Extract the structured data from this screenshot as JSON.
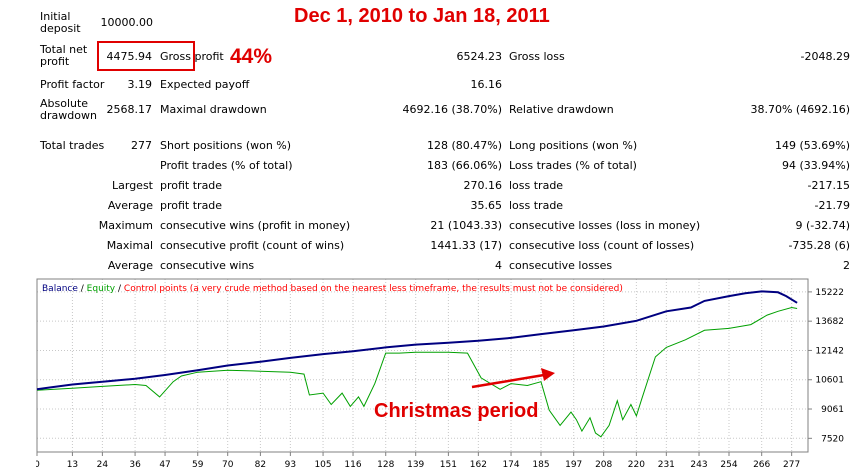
{
  "headline": "Dec 1, 2010 to Jan 18, 2011",
  "percent_note": "44%",
  "report": {
    "initial_deposit": {
      "label": "Initial deposit",
      "value": "10000.00"
    },
    "total_net_profit": {
      "label": "Total net profit",
      "value": "4475.94"
    },
    "gross_profit": {
      "label": "Gross profit",
      "value": "6524.23"
    },
    "gross_loss": {
      "label": "Gross loss",
      "value": "-2048.29"
    },
    "profit_factor": {
      "label": "Profit factor",
      "value": "3.19"
    },
    "expected_payoff": {
      "label": "Expected payoff",
      "value": "16.16"
    },
    "absolute_drawdown": {
      "label": "Absolute drawdown",
      "value": "2568.17"
    },
    "maximal_drawdown": {
      "label": "Maximal drawdown",
      "value": "4692.16 (38.70%)"
    },
    "relative_drawdown": {
      "label": "Relative drawdown",
      "value": "38.70% (4692.16)"
    },
    "total_trades": {
      "label": "Total trades",
      "value": "277"
    },
    "short_positions": {
      "label": "Short positions (won %)",
      "value": "128 (80.47%)"
    },
    "long_positions": {
      "label": "Long positions (won %)",
      "value": "149 (53.69%)"
    },
    "profit_trades": {
      "label": "Profit trades (% of total)",
      "value": "183 (66.06%)"
    },
    "loss_trades": {
      "label": "Loss trades (% of total)",
      "value": "94 (33.94%)"
    },
    "largest": {
      "label": "Largest",
      "profit_label": "profit trade",
      "profit_value": "270.16",
      "loss_label": "loss trade",
      "loss_value": "-217.15"
    },
    "average": {
      "label": "Average",
      "profit_label": "profit trade",
      "profit_value": "35.65",
      "loss_label": "loss trade",
      "loss_value": "-21.79"
    },
    "maximum": {
      "label": "Maximum",
      "wins_label": "consecutive wins (profit in money)",
      "wins_value": "21 (1043.33)",
      "losses_label": "consecutive losses (loss in money)",
      "losses_value": "9 (-32.74)"
    },
    "maximal": {
      "label": "Maximal",
      "profit_label": "consecutive profit (count of wins)",
      "profit_value": "1441.33 (17)",
      "loss_label": "consecutive loss (count of losses)",
      "loss_value": "-735.28 (6)"
    },
    "average_consecutive": {
      "label": "Average",
      "wins_label": "consecutive wins",
      "wins_value": "4",
      "losses_label": "consecutive losses",
      "losses_value": "2"
    }
  },
  "annotation": "Christmas period",
  "chart_data": {
    "type": "line",
    "legend": {
      "balance": "Balance",
      "sep1": " / ",
      "equity": "Equity",
      "sep2": " / ",
      "control": "Control points (a very crude method based on the nearest less timeframe, the results must not be considered)"
    },
    "x_ticks": [
      0,
      13,
      24,
      36,
      47,
      59,
      70,
      82,
      93,
      105,
      116,
      128,
      139,
      151,
      162,
      174,
      185,
      197,
      208,
      220,
      231,
      243,
      254,
      266,
      277
    ],
    "y_ticks": [
      7520,
      9061,
      10601,
      12142,
      13682,
      15222
    ],
    "xlim": [
      0,
      283
    ],
    "ylim": [
      6800,
      15900
    ],
    "colors": {
      "balance": "#000080",
      "equity": "#00a000",
      "control": "#ff0000",
      "grid": "#c8c8c8",
      "arrow": "#e00000"
    },
    "series": [
      {
        "name": "Balance",
        "x": [
          0,
          5,
          13,
          24,
          36,
          47,
          59,
          70,
          82,
          93,
          105,
          116,
          128,
          139,
          151,
          162,
          174,
          185,
          197,
          208,
          220,
          231,
          240,
          245,
          254,
          260,
          266,
          272,
          275,
          279
        ],
        "y": [
          10100,
          10200,
          10350,
          10500,
          10650,
          10850,
          11100,
          11350,
          11550,
          11750,
          11950,
          12100,
          12300,
          12450,
          12550,
          12650,
          12800,
          13000,
          13200,
          13400,
          13700,
          14200,
          14400,
          14750,
          15000,
          15150,
          15250,
          15200,
          15000,
          14650
        ]
      },
      {
        "name": "Equity",
        "x": [
          0,
          13,
          24,
          36,
          40,
          45,
          50,
          53,
          59,
          70,
          82,
          93,
          98,
          100,
          105,
          108,
          112,
          115,
          118,
          120,
          124,
          128,
          133,
          139,
          151,
          158,
          163,
          170,
          174,
          180,
          185,
          188,
          192,
          196,
          198,
          200,
          203,
          205,
          207,
          210,
          213,
          215,
          218,
          220,
          222,
          227,
          231,
          238,
          245,
          254,
          262,
          268,
          272,
          277,
          279
        ],
        "y": [
          10050,
          10150,
          10250,
          10350,
          10300,
          9700,
          10500,
          10800,
          11000,
          11100,
          11050,
          11000,
          10900,
          9800,
          9900,
          9300,
          9900,
          9200,
          9700,
          9200,
          10400,
          12000,
          12000,
          12050,
          12050,
          12000,
          10700,
          10100,
          10400,
          10300,
          10500,
          9000,
          8200,
          8900,
          8500,
          7900,
          8600,
          7800,
          7600,
          8200,
          9500,
          8500,
          9300,
          8700,
          9600,
          11800,
          12300,
          12700,
          13200,
          13300,
          13500,
          14000,
          14200,
          14400,
          14350
        ]
      }
    ]
  }
}
